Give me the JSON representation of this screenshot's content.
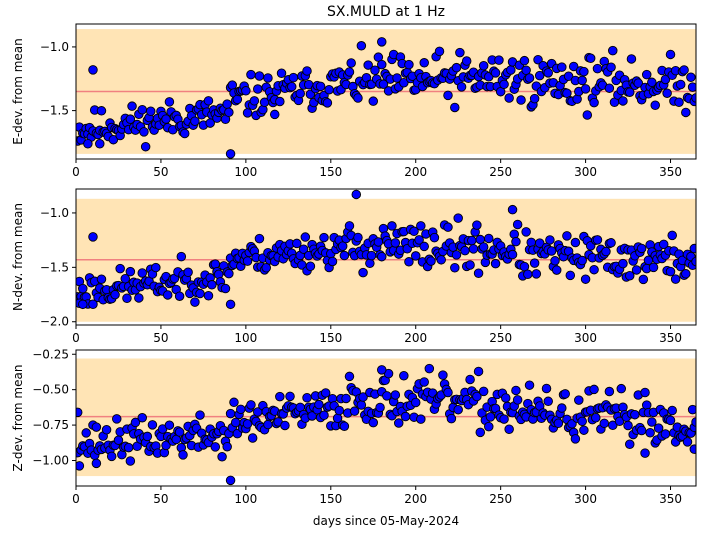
{
  "chart_data": {
    "type": "scatter",
    "title": "SX.MULD at 1 Hz",
    "xlabel": "days since 05-May-2024",
    "xlim": [
      0,
      365
    ],
    "x_ticks": [
      "0",
      "50",
      "100",
      "150",
      "200",
      "250",
      "300",
      "350"
    ],
    "x_tick_values": [
      0,
      50,
      100,
      150,
      200,
      250,
      300,
      350
    ],
    "colors": {
      "marker": "#0000ff",
      "marker_edge": "#000000",
      "band": "#ffe4b5",
      "mean_line": "#f08080"
    },
    "panels": [
      {
        "ylabel": "E-dev. from mean",
        "ylim": [
          -1.88,
          -0.82
        ],
        "y_ticks": [
          "−1.5",
          "−1.0"
        ],
        "y_tick_values": [
          -1.5,
          -1.0
        ],
        "band": [
          -1.84,
          -0.86
        ],
        "mean": -1.35,
        "segments": [
          {
            "x0": 1,
            "x1": 90,
            "y0": -1.65,
            "y1": -1.52,
            "spread": 0.07
          },
          {
            "x0": 90,
            "x1": 160,
            "y0": -1.42,
            "y1": -1.28,
            "spread": 0.08
          },
          {
            "x0": 160,
            "x1": 260,
            "y0": -1.28,
            "y1": -1.24,
            "spread": 0.1
          },
          {
            "x0": 260,
            "x1": 365,
            "y0": -1.26,
            "y1": -1.3,
            "spread": 0.1
          }
        ],
        "points": [
          [
            91,
            -1.84
          ],
          [
            180,
            -0.96
          ],
          [
            117,
            -1.53
          ],
          [
            7,
            -1.76
          ],
          [
            14,
            -1.76
          ],
          [
            10,
            -1.18
          ]
        ],
        "seed": 11
      },
      {
        "ylabel": "N-dev. from mean",
        "ylim": [
          -2.03,
          -0.78
        ],
        "y_ticks": [
          "−2.0",
          "−1.5",
          "−1.0"
        ],
        "y_tick_values": [
          -2.0,
          -1.5,
          -1.0
        ],
        "band": [
          -2.0,
          -0.87
        ],
        "mean": -1.43,
        "segments": [
          {
            "x0": 1,
            "x1": 90,
            "y0": -1.72,
            "y1": -1.58,
            "spread": 0.08
          },
          {
            "x0": 90,
            "x1": 160,
            "y0": -1.42,
            "y1": -1.32,
            "spread": 0.08
          },
          {
            "x0": 160,
            "x1": 260,
            "y0": -1.3,
            "y1": -1.33,
            "spread": 0.11
          },
          {
            "x0": 260,
            "x1": 365,
            "y0": -1.4,
            "y1": -1.43,
            "spread": 0.1
          }
        ],
        "points": [
          [
            165,
            -0.83
          ],
          [
            91,
            -1.84
          ],
          [
            10,
            -1.22
          ],
          [
            2,
            -1.83
          ],
          [
            4,
            -1.84
          ],
          [
            257,
            -0.97
          ]
        ],
        "seed": 23
      },
      {
        "ylabel": "Z-dev. from mean",
        "ylim": [
          -1.18,
          -0.22
        ],
        "y_ticks": [
          "−1.00",
          "−0.75",
          "−0.50",
          "−0.25"
        ],
        "y_tick_values": [
          -1.0,
          -0.75,
          -0.5,
          -0.25
        ],
        "band": [
          -1.11,
          -0.28
        ],
        "mean": -0.69,
        "segments": [
          {
            "x0": 1,
            "x1": 90,
            "y0": -0.88,
            "y1": -0.82,
            "spread": 0.07
          },
          {
            "x0": 90,
            "x1": 160,
            "y0": -0.74,
            "y1": -0.62,
            "spread": 0.07
          },
          {
            "x0": 160,
            "x1": 260,
            "y0": -0.55,
            "y1": -0.62,
            "spread": 0.09
          },
          {
            "x0": 260,
            "x1": 365,
            "y0": -0.66,
            "y1": -0.74,
            "spread": 0.09
          }
        ],
        "points": [
          [
            91,
            -1.14
          ],
          [
            180,
            -0.36
          ],
          [
            12,
            -1.02
          ],
          [
            1,
            -0.66
          ],
          [
            364,
            -0.92
          ],
          [
            335,
            -0.52
          ]
        ],
        "seed": 37
      }
    ]
  }
}
